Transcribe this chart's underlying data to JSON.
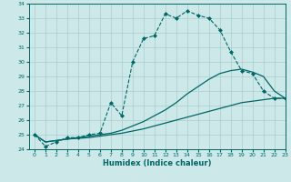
{
  "title": "",
  "xlabel": "Humidex (Indice chaleur)",
  "ylabel": "",
  "xlim": [
    -0.5,
    23
  ],
  "ylim": [
    24,
    34
  ],
  "yticks": [
    24,
    25,
    26,
    27,
    28,
    29,
    30,
    31,
    32,
    33,
    34
  ],
  "xticks": [
    0,
    1,
    2,
    3,
    4,
    5,
    6,
    7,
    8,
    9,
    10,
    11,
    12,
    13,
    14,
    15,
    16,
    17,
    18,
    19,
    20,
    21,
    22,
    23
  ],
  "bg_color": "#cce8e8",
  "grid_color": "#aacece",
  "line_color": "#006666",
  "series": [
    {
      "x": [
        0,
        1,
        2,
        3,
        4,
        5,
        6,
        7,
        8,
        9,
        10,
        11,
        12,
        13,
        14,
        15,
        16,
        17,
        18,
        19,
        20,
        21,
        22,
        23
      ],
      "y": [
        25.0,
        24.2,
        24.5,
        24.8,
        24.8,
        25.0,
        25.1,
        27.2,
        26.3,
        30.0,
        31.6,
        31.8,
        33.3,
        33.0,
        33.5,
        33.2,
        33.0,
        32.2,
        30.7,
        29.4,
        29.2,
        28.0,
        27.5,
        27.5
      ],
      "marker": "D",
      "markersize": 2.0,
      "linewidth": 0.8,
      "linestyle": "--"
    },
    {
      "x": [
        0,
        1,
        2,
        3,
        4,
        5,
        6,
        7,
        8,
        9,
        10,
        11,
        12,
        13,
        14,
        15,
        16,
        17,
        18,
        19,
        20,
        21,
        22,
        23
      ],
      "y": [
        25.0,
        24.5,
        24.6,
        24.7,
        24.8,
        24.9,
        25.0,
        25.1,
        25.3,
        25.6,
        25.9,
        26.3,
        26.7,
        27.2,
        27.8,
        28.3,
        28.8,
        29.2,
        29.4,
        29.5,
        29.3,
        29.0,
        28.0,
        27.5
      ],
      "marker": null,
      "markersize": 0,
      "linewidth": 0.9,
      "linestyle": "-"
    },
    {
      "x": [
        0,
        1,
        2,
        3,
        4,
        5,
        6,
        7,
        8,
        9,
        10,
        11,
        12,
        13,
        14,
        15,
        16,
        17,
        18,
        19,
        20,
        21,
        22,
        23
      ],
      "y": [
        25.0,
        24.5,
        24.6,
        24.7,
        24.75,
        24.8,
        24.9,
        25.0,
        25.1,
        25.25,
        25.4,
        25.6,
        25.8,
        26.0,
        26.2,
        26.4,
        26.6,
        26.8,
        27.0,
        27.2,
        27.3,
        27.4,
        27.5,
        27.5
      ],
      "marker": null,
      "markersize": 0,
      "linewidth": 0.9,
      "linestyle": "-"
    }
  ]
}
